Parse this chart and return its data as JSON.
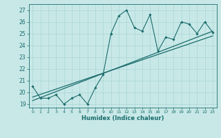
{
  "xlabel": "Humidex (Indice chaleur)",
  "bg_color": "#c8e8e8",
  "line_color": "#1a6b6b",
  "xlim": [
    -0.5,
    23.5
  ],
  "ylim": [
    18.7,
    27.5
  ],
  "xticks": [
    0,
    1,
    2,
    3,
    4,
    5,
    6,
    7,
    8,
    9,
    10,
    11,
    12,
    13,
    14,
    15,
    16,
    17,
    18,
    19,
    20,
    21,
    22,
    23
  ],
  "yticks": [
    19,
    20,
    21,
    22,
    23,
    24,
    25,
    26,
    27
  ],
  "grid_color": "#aad4d4",
  "line1_x": [
    0,
    1,
    2,
    3,
    4,
    5,
    6,
    7,
    8,
    9,
    10,
    11,
    12,
    13,
    14,
    15,
    16,
    17,
    18,
    19,
    20,
    21,
    22,
    23
  ],
  "line1_y": [
    20.5,
    19.5,
    19.5,
    19.8,
    19.0,
    19.5,
    19.8,
    19.0,
    20.4,
    21.5,
    25.0,
    26.5,
    27.0,
    25.5,
    25.2,
    26.6,
    23.5,
    24.7,
    24.5,
    26.0,
    25.8,
    25.0,
    26.0,
    25.1
  ],
  "line2_x": [
    0,
    23
  ],
  "line2_y": [
    19.3,
    25.2
  ],
  "line3_x": [
    0,
    23
  ],
  "line3_y": [
    19.6,
    24.8
  ]
}
